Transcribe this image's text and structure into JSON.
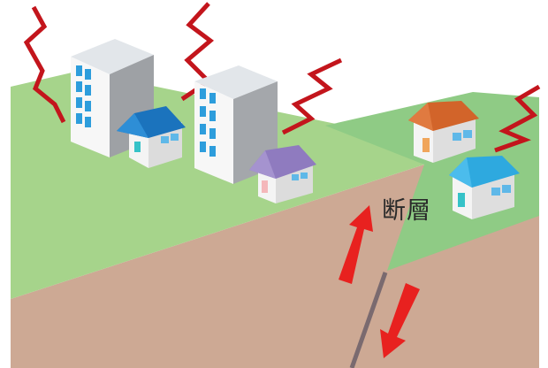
{
  "label": {
    "fault": "断層"
  },
  "colors": {
    "ground_left": "#a6d48b",
    "ground_right": "#8fcb85",
    "soil": "#cda994",
    "fault_line": "#7a6a6f",
    "arrow": "#e8211f",
    "shake": "#c3151c"
  },
  "icons": [
    "seismic-wave-icon",
    "up-arrow-icon",
    "down-arrow-icon",
    "building-icon",
    "house-icon"
  ]
}
